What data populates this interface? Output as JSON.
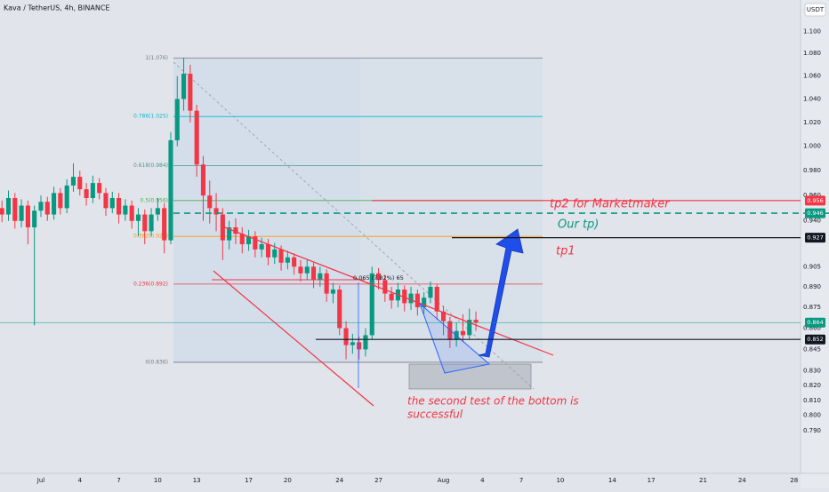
{
  "chart_data": {
    "type": "candlestick",
    "title": "Kava / TetherUS, 4h, BINANCE",
    "currency": "USDT",
    "log_scale": true,
    "grid": false,
    "up_color": "#089981",
    "down_color": "#f23645",
    "xlim": [
      -3.15,
      58.5
    ],
    "xticks": [
      {
        "value": 0,
        "label": "Jul"
      },
      {
        "value": 3,
        "label": "4"
      },
      {
        "value": 6,
        "label": "7"
      },
      {
        "value": 9,
        "label": "10"
      },
      {
        "value": 12,
        "label": "13"
      },
      {
        "value": 16,
        "label": "17"
      },
      {
        "value": 19,
        "label": "20"
      },
      {
        "value": 23,
        "label": "24"
      },
      {
        "value": 26,
        "label": "27"
      },
      {
        "value": 31,
        "label": "Aug"
      },
      {
        "value": 34,
        "label": "4"
      },
      {
        "value": 37,
        "label": "7"
      },
      {
        "value": 40,
        "label": "10"
      },
      {
        "value": 44,
        "label": "14"
      },
      {
        "value": 47,
        "label": "17"
      },
      {
        "value": 51,
        "label": "21"
      },
      {
        "value": 54,
        "label": "24"
      },
      {
        "value": 58,
        "label": "28"
      }
    ],
    "ylim": [
      0.763,
      1.129
    ],
    "yticks": [
      {
        "value": 1.1,
        "label": "1.100"
      },
      {
        "value": 1.08,
        "label": "1.080"
      },
      {
        "value": 1.06,
        "label": "1.060"
      },
      {
        "value": 1.04,
        "label": "1.040"
      },
      {
        "value": 1.02,
        "label": "1.020"
      },
      {
        "value": 1.0,
        "label": "1.000"
      },
      {
        "value": 0.98,
        "label": "0.980"
      },
      {
        "value": 0.96,
        "label": "0.960"
      },
      {
        "value": 0.94,
        "label": "0.940"
      },
      0.905,
      {
        "value": 0.89,
        "label": "0.890"
      },
      0.875,
      {
        "value": 0.86,
        "label": "0.860"
      },
      0.845,
      {
        "value": 0.83,
        "label": "0.830"
      },
      {
        "value": 0.82,
        "label": "0.820"
      },
      {
        "value": 0.81,
        "label": "0.810"
      },
      {
        "value": 0.8,
        "label": "0.800"
      },
      {
        "value": 0.79,
        "label": "0.790"
      }
    ],
    "x": [
      -3,
      -2.5,
      -2,
      -1.5,
      -1,
      -0.5,
      0,
      0.5,
      1,
      1.5,
      2,
      2.5,
      3,
      3.5,
      4,
      4.5,
      5,
      5.5,
      6,
      6.5,
      7,
      7.5,
      8,
      8.5,
      9,
      9.5,
      10,
      10.5,
      11,
      11.5,
      12,
      12.5,
      13,
      13.5,
      14,
      14.5,
      15,
      15.5,
      16,
      16.5,
      17,
      17.5,
      18,
      18.5,
      19,
      19.5,
      20,
      20.5,
      21,
      21.5,
      22,
      22.5,
      23,
      23.5,
      24,
      24.5,
      25,
      25.5,
      26,
      26.5,
      27,
      27.5,
      28,
      28.5,
      29,
      29.5,
      30,
      30.5,
      31,
      31.5,
      32,
      32.5,
      33,
      33.5
    ],
    "ohlc": [
      [
        0.95,
        0.956,
        0.939,
        0.945
      ],
      [
        0.945,
        0.964,
        0.94,
        0.958
      ],
      [
        0.958,
        0.962,
        0.934,
        0.94
      ],
      [
        0.94,
        0.957,
        0.935,
        0.952
      ],
      [
        0.952,
        0.956,
        0.922,
        0.935
      ],
      [
        0.935,
        0.952,
        0.862,
        0.948
      ],
      [
        0.948,
        0.96,
        0.943,
        0.955
      ],
      [
        0.955,
        0.959,
        0.94,
        0.945
      ],
      [
        0.945,
        0.967,
        0.941,
        0.962
      ],
      [
        0.962,
        0.966,
        0.945,
        0.95
      ],
      [
        0.95,
        0.973,
        0.946,
        0.968
      ],
      [
        0.968,
        0.986,
        0.963,
        0.975
      ],
      [
        0.975,
        0.98,
        0.96,
        0.965
      ],
      [
        0.965,
        0.97,
        0.952,
        0.958
      ],
      [
        0.958,
        0.976,
        0.954,
        0.97
      ],
      [
        0.97,
        0.974,
        0.957,
        0.962
      ],
      [
        0.962,
        0.966,
        0.944,
        0.95
      ],
      [
        0.95,
        0.963,
        0.946,
        0.958
      ],
      [
        0.958,
        0.962,
        0.938,
        0.945
      ],
      [
        0.945,
        0.957,
        0.94,
        0.952
      ],
      [
        0.952,
        0.956,
        0.934,
        0.94
      ],
      [
        0.94,
        0.95,
        0.928,
        0.945
      ],
      [
        0.945,
        0.949,
        0.922,
        0.932
      ],
      [
        0.932,
        0.95,
        0.928,
        0.945
      ],
      [
        0.945,
        0.958,
        0.94,
        0.95
      ],
      [
        0.95,
        0.954,
        0.915,
        0.925
      ],
      [
        0.925,
        1.012,
        0.922,
        1.005
      ],
      [
        1.005,
        1.06,
        1.0,
        1.04
      ],
      [
        1.04,
        1.076,
        1.03,
        1.062
      ],
      [
        1.062,
        1.07,
        1.02,
        1.03
      ],
      [
        1.03,
        1.035,
        0.975,
        0.985
      ],
      [
        0.985,
        0.992,
        0.94,
        0.96
      ],
      [
        0.96,
        0.972,
        0.938,
        0.95
      ],
      [
        0.95,
        0.962,
        0.932,
        0.945
      ],
      [
        0.945,
        0.95,
        0.91,
        0.925
      ],
      [
        0.925,
        0.94,
        0.918,
        0.935
      ],
      [
        0.935,
        0.942,
        0.922,
        0.93
      ],
      [
        0.93,
        0.935,
        0.915,
        0.922
      ],
      [
        0.922,
        0.933,
        0.917,
        0.928
      ],
      [
        0.928,
        0.932,
        0.912,
        0.918
      ],
      [
        0.918,
        0.927,
        0.912,
        0.922
      ],
      [
        0.922,
        0.926,
        0.906,
        0.912
      ],
      [
        0.912,
        0.923,
        0.907,
        0.918
      ],
      [
        0.918,
        0.921,
        0.902,
        0.908
      ],
      [
        0.908,
        0.917,
        0.903,
        0.912
      ],
      [
        0.912,
        0.915,
        0.899,
        0.905
      ],
      [
        0.905,
        0.91,
        0.894,
        0.9
      ],
      [
        0.9,
        0.91,
        0.895,
        0.905
      ],
      [
        0.905,
        0.908,
        0.889,
        0.895
      ],
      [
        0.895,
        0.905,
        0.89,
        0.9
      ],
      [
        0.9,
        0.903,
        0.879,
        0.885
      ],
      [
        0.885,
        0.893,
        0.878,
        0.888
      ],
      [
        0.888,
        0.891,
        0.855,
        0.86
      ],
      [
        0.86,
        0.865,
        0.838,
        0.848
      ],
      [
        0.848,
        0.856,
        0.842,
        0.85
      ],
      [
        0.85,
        0.854,
        0.838,
        0.845
      ],
      [
        0.845,
        0.86,
        0.84,
        0.855
      ],
      [
        0.855,
        0.905,
        0.852,
        0.9
      ],
      [
        0.9,
        0.904,
        0.888,
        0.895
      ],
      [
        0.895,
        0.899,
        0.879,
        0.885
      ],
      [
        0.885,
        0.89,
        0.874,
        0.88
      ],
      [
        0.88,
        0.893,
        0.875,
        0.888
      ],
      [
        0.888,
        0.891,
        0.872,
        0.878
      ],
      [
        0.878,
        0.89,
        0.873,
        0.885
      ],
      [
        0.885,
        0.888,
        0.869,
        0.875
      ],
      [
        0.875,
        0.886,
        0.87,
        0.882
      ],
      [
        0.882,
        0.894,
        0.878,
        0.89
      ],
      [
        0.89,
        0.892,
        0.866,
        0.872
      ],
      [
        0.872,
        0.876,
        0.855,
        0.865
      ],
      [
        0.865,
        0.868,
        0.846,
        0.852
      ],
      [
        0.852,
        0.864,
        0.847,
        0.858
      ],
      [
        0.858,
        0.87,
        0.85,
        0.855
      ],
      [
        0.855,
        0.874,
        0.852,
        0.866
      ],
      [
        0.866,
        0.872,
        0.858,
        0.864
      ]
    ],
    "fib": [
      {
        "label": "1(1.076)",
        "price": 1.076,
        "color": "#787b86"
      },
      {
        "label": "0.786(1.025)",
        "price": 1.025,
        "color": "#00bcd4"
      },
      {
        "label": "0.618(0.984)",
        "price": 0.984,
        "color": "#4a9a8a"
      },
      {
        "label": "0.5(0.956)",
        "price": 0.956,
        "color": "#4caf50"
      },
      {
        "label": "0.382(0.928)",
        "price": 0.928,
        "color": "#ff9800"
      },
      {
        "label": "0.236(0.892)",
        "price": 0.892,
        "color": "#f23645"
      },
      {
        "label": "0(0.836)",
        "price": 0.836,
        "color": "#787b86"
      }
    ],
    "levels": [
      {
        "price": 0.956,
        "color": "#f23645"
      },
      {
        "price": 0.946,
        "color": "#089981"
      },
      {
        "price": 0.927,
        "color": "#131722"
      },
      {
        "price": 0.864,
        "color": "#089981"
      },
      {
        "price": 0.852,
        "color": "#131722"
      }
    ],
    "annotations": [
      {
        "text": "tp2 for Marketmaker",
        "color": "#f23645"
      },
      {
        "text": "Our tp)",
        "color": "#089981"
      },
      {
        "text": "tp1",
        "color": "#f23645"
      },
      {
        "text": "the second test of the bottom is",
        "color": "#f23645"
      },
      {
        "text": "successful",
        "color": "#f23645"
      },
      {
        "text": "0.065 (7.82%) 65",
        "color": "#131722"
      }
    ]
  }
}
